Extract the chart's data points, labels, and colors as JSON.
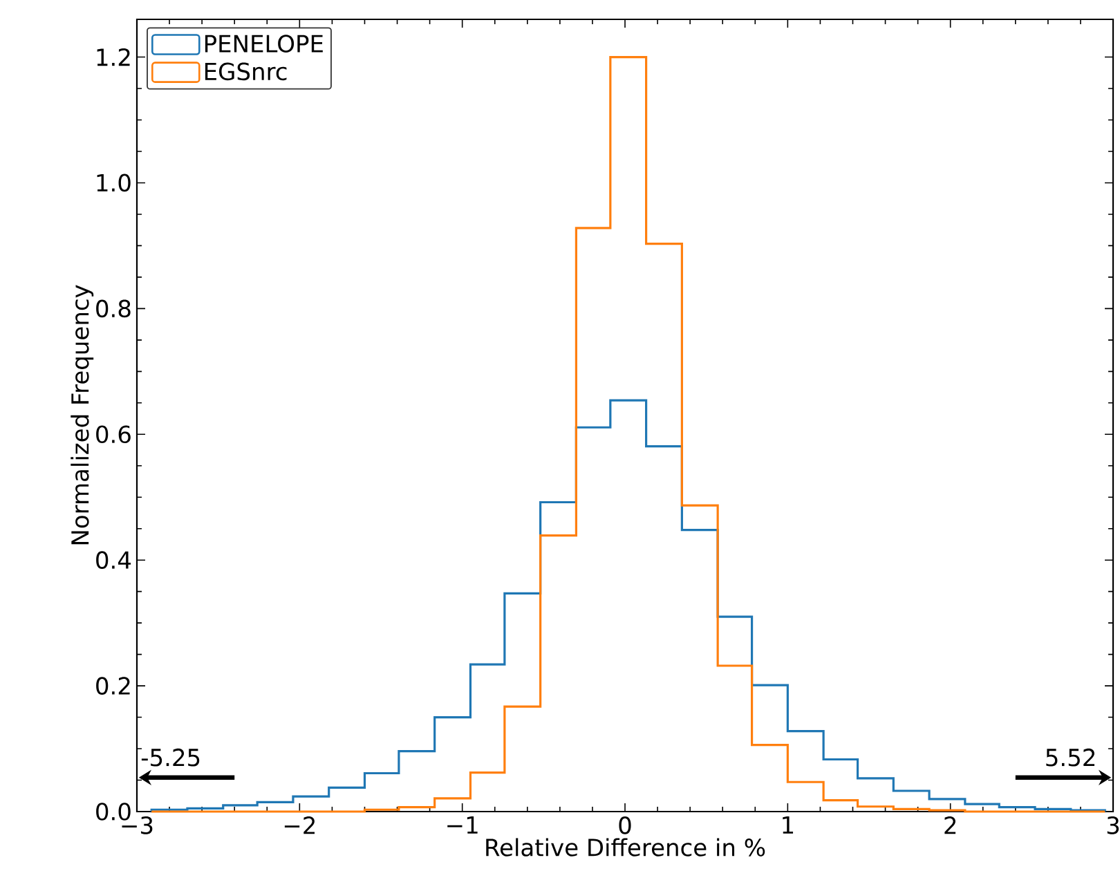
{
  "chart_data": {
    "type": "histogram",
    "xlabel": "Relative Difference in %",
    "ylabel": "Normalized Frequency",
    "bins": [
      -2.91,
      -2.69,
      -2.47,
      -2.26,
      -2.04,
      -1.82,
      -1.6,
      -1.39,
      -1.17,
      -0.95,
      -0.74,
      -0.52,
      -0.3,
      -0.09,
      0.13,
      0.35,
      0.57,
      0.78,
      1.0,
      1.22,
      1.43,
      1.65,
      1.87,
      2.09,
      2.3,
      2.52,
      2.74,
      2.95
    ],
    "series": [
      {
        "name": "PENELOPE",
        "color": "#1f77b4",
        "values": [
          0.003,
          0.005,
          0.01,
          0.015,
          0.024,
          0.038,
          0.061,
          0.096,
          0.15,
          0.234,
          0.347,
          0.492,
          0.611,
          0.654,
          0.581,
          0.448,
          0.31,
          0.201,
          0.128,
          0.083,
          0.053,
          0.033,
          0.02,
          0.012,
          0.007,
          0.004,
          0.002
        ]
      },
      {
        "name": "EGSnrc",
        "color": "#ff7f0e",
        "values": [
          0,
          0,
          0,
          0,
          0,
          0,
          0.003,
          0.007,
          0.021,
          0.062,
          0.167,
          0.439,
          0.928,
          1.2,
          0.903,
          0.487,
          0.232,
          0.106,
          0.047,
          0.018,
          0.008,
          0.004,
          0.002,
          0,
          0,
          0,
          0
        ]
      }
    ],
    "xlim": [
      -3,
      3
    ],
    "ylim": [
      0,
      1.26
    ],
    "xticks": [
      {
        "value": -3,
        "label": "−3"
      },
      {
        "value": -2,
        "label": "−2"
      },
      {
        "value": -1,
        "label": "−1"
      },
      0,
      1,
      2,
      {
        "value": 3,
        "label": "3"
      }
    ],
    "yticks": [
      {
        "value": 0,
        "label": "0.0"
      },
      0.2,
      0.4,
      0.6,
      0.8,
      {
        "value": 1,
        "label": "1.0"
      },
      1.2
    ],
    "annotations": [
      "-5.25",
      "5.52"
    ],
    "legend": "top left",
    "grid": false
  }
}
